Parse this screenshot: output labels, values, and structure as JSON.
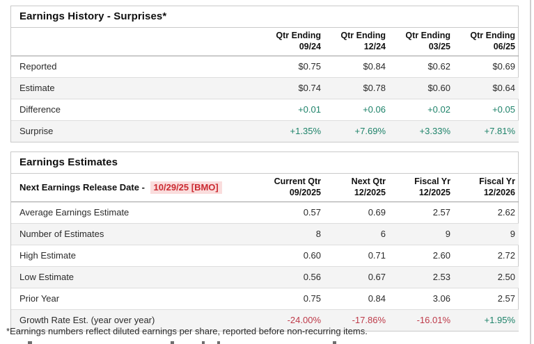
{
  "colors": {
    "positive_green": "#1d8269",
    "negative_red": "#bd3948",
    "release_date_text": "#cb2a31",
    "release_date_bg": "#fadddd",
    "row_stripe": "#f4f4f4",
    "border": "#c9c9c9"
  },
  "earnings_history": {
    "title": "Earnings History - Surprises*",
    "columns": [
      {
        "line1": "Qtr Ending",
        "line2": "09/24"
      },
      {
        "line1": "Qtr Ending",
        "line2": "12/24"
      },
      {
        "line1": "Qtr Ending",
        "line2": "03/25"
      },
      {
        "line1": "Qtr Ending",
        "line2": "06/25"
      }
    ],
    "rows": [
      {
        "label": "Reported",
        "values": [
          "$0.75",
          "$0.84",
          "$0.62",
          "$0.69"
        ]
      },
      {
        "label": "Estimate",
        "values": [
          "$0.74",
          "$0.78",
          "$0.60",
          "$0.64"
        ]
      },
      {
        "label": "Difference",
        "values": [
          "+0.01",
          "+0.06",
          "+0.02",
          "+0.05"
        ]
      },
      {
        "label": "Surprise",
        "values": [
          "+1.35%",
          "+7.69%",
          "+3.33%",
          "+7.81%"
        ]
      }
    ]
  },
  "earnings_estimates": {
    "title": "Earnings Estimates",
    "release_label": "Next Earnings Release Date -",
    "release_date": "10/29/25 [BMO]",
    "columns": [
      {
        "line1": "Current Qtr",
        "line2": "09/2025"
      },
      {
        "line1": "Next Qtr",
        "line2": "12/2025"
      },
      {
        "line1": "Fiscal Yr",
        "line2": "12/2025"
      },
      {
        "line1": "Fiscal Yr",
        "line2": "12/2026"
      }
    ],
    "rows": [
      {
        "label": "Average Earnings Estimate",
        "values": [
          "0.57",
          "0.69",
          "2.57",
          "2.62"
        ]
      },
      {
        "label": "Number of Estimates",
        "values": [
          "8",
          "6",
          "9",
          "9"
        ]
      },
      {
        "label": "High Estimate",
        "values": [
          "0.60",
          "0.71",
          "2.60",
          "2.72"
        ]
      },
      {
        "label": "Low Estimate",
        "values": [
          "0.56",
          "0.67",
          "2.53",
          "2.50"
        ]
      },
      {
        "label": "Prior Year",
        "values": [
          "0.75",
          "0.84",
          "3.06",
          "2.57"
        ]
      },
      {
        "label": "Growth Rate Est. (year over year)",
        "values": [
          "-24.00%",
          "-17.86%",
          "-16.01%",
          "+1.95%"
        ]
      }
    ]
  },
  "footnote": "*Earnings numbers reflect diluted earnings per share, reported before non-recurring items."
}
